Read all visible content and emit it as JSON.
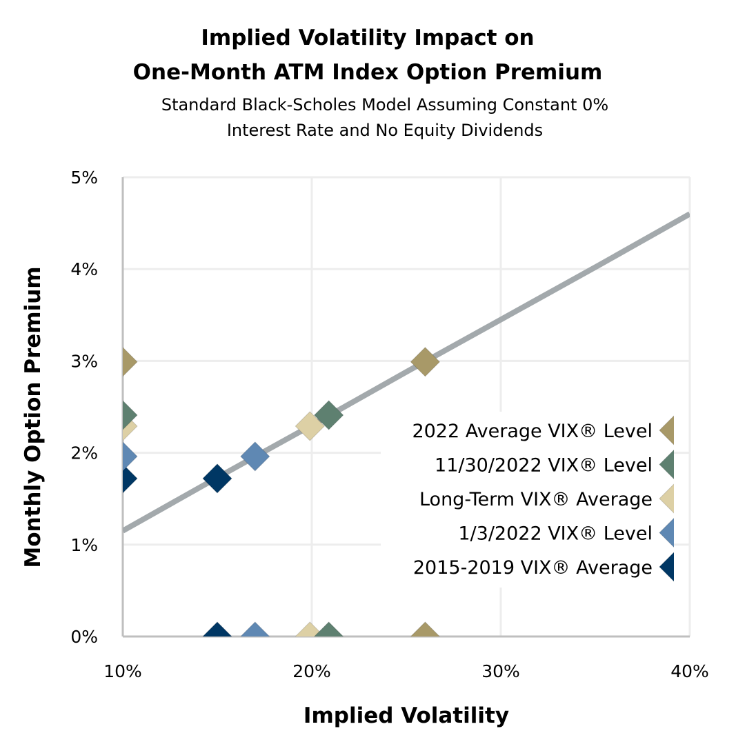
{
  "chart_data": {
    "type": "scatter",
    "title": [
      "Implied Volatility Impact on",
      "One-Month ATM Index Option Premium"
    ],
    "subtitle": [
      "Standard Black-Scholes Model Assuming Constant 0%",
      "Interest Rate and No Equity Dividends"
    ],
    "xlabel": "Implied Volatility",
    "ylabel": "Monthly Option Premium",
    "xlim": [
      10,
      40
    ],
    "ylim": [
      0,
      5
    ],
    "x_ticks": [
      "10%",
      "20%",
      "30%",
      "40%"
    ],
    "y_ticks": [
      "0%",
      "1%",
      "2%",
      "3%",
      "4%",
      "5%"
    ],
    "grid": true,
    "legend_position": "center-right",
    "curve": {
      "color": "#A3A9AC",
      "x": [
        10,
        15,
        20,
        25,
        30,
        35,
        40
      ],
      "y": [
        1.15,
        1.73,
        2.3,
        2.88,
        3.45,
        4.02,
        4.6
      ]
    },
    "series": [
      {
        "name": "2022 Average VIX® Level",
        "x": 26.0,
        "y": 2.99,
        "color": "#A89968"
      },
      {
        "name": "11/30/2022 VIX® Level",
        "x": 20.9,
        "y": 2.41,
        "color": "#5E8070"
      },
      {
        "name": "Long-Term VIX® Average",
        "x": 19.9,
        "y": 2.29,
        "color": "#DDD0A5"
      },
      {
        "name": "1/3/2022 VIX® Level",
        "x": 17.0,
        "y": 1.96,
        "color": "#5F88B3"
      },
      {
        "name": "2015-2019 VIX® Average",
        "x": 15.0,
        "y": 1.72,
        "color": "#003764"
      }
    ]
  }
}
